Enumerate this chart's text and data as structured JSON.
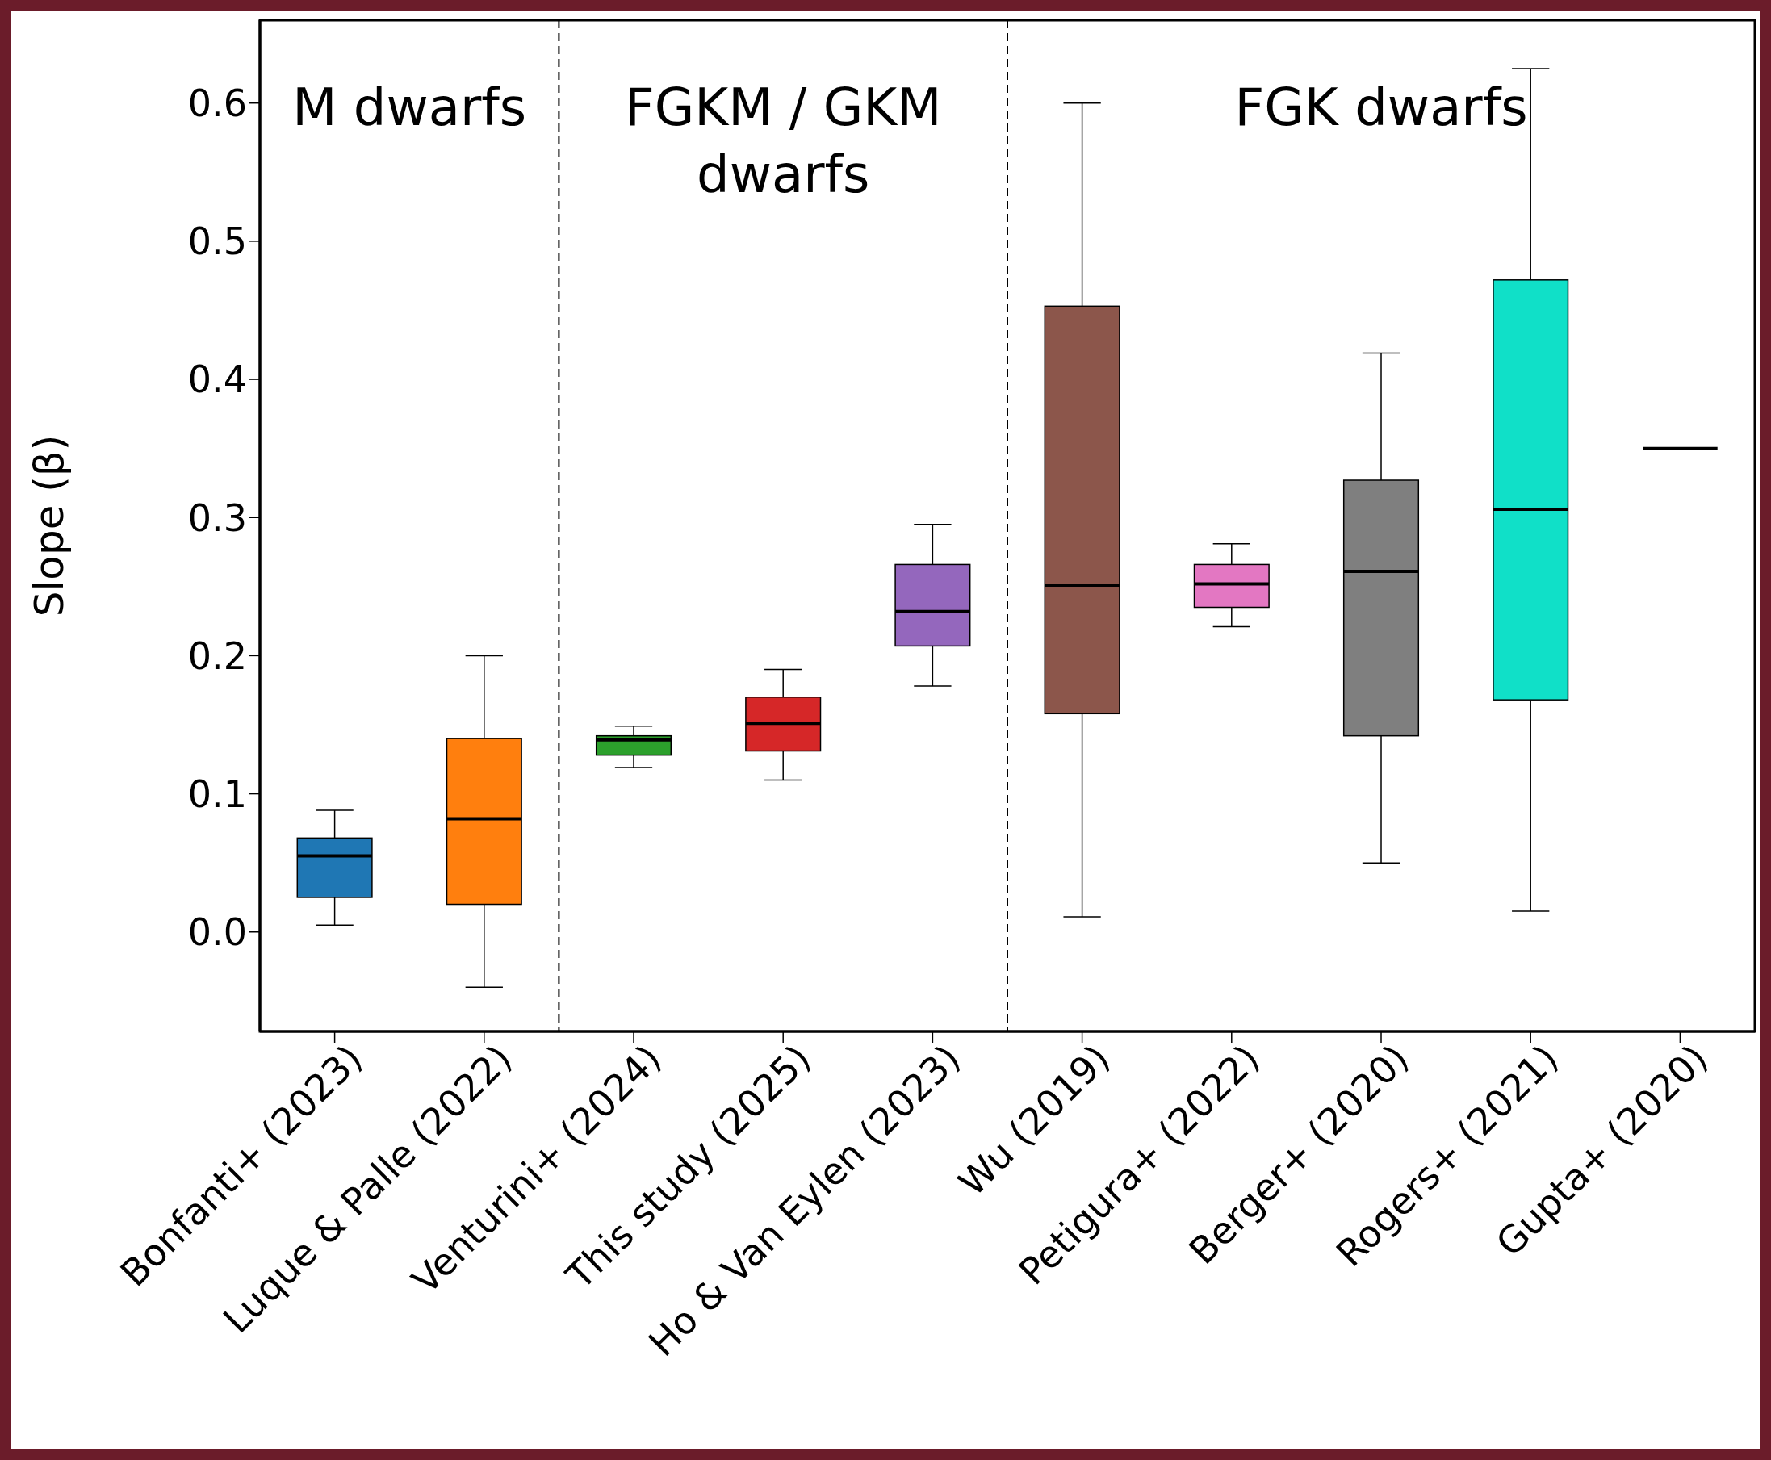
{
  "chart_data": {
    "type": "box",
    "ylabel": "Slope (β)",
    "categories": [
      "Bonfanti+ (2023)",
      "Luque & Palle (2022)",
      "Venturini+ (2024)",
      "This study (2025)",
      "Ho & Van Eylen (2023)",
      "Wu (2019)",
      "Petigura+ (2022)",
      "Berger+ (2020)",
      "Rogers+ (2021)",
      "Gupta+ (2020)"
    ],
    "boxes": [
      {
        "low": 0.005,
        "q1": 0.025,
        "median": 0.055,
        "q3": 0.068,
        "high": 0.088
      },
      {
        "low": -0.04,
        "q1": 0.02,
        "median": 0.082,
        "q3": 0.14,
        "high": 0.2
      },
      {
        "low": 0.119,
        "q1": 0.128,
        "median": 0.139,
        "q3": 0.142,
        "high": 0.149
      },
      {
        "low": 0.11,
        "q1": 0.131,
        "median": 0.151,
        "q3": 0.17,
        "high": 0.19
      },
      {
        "low": 0.178,
        "q1": 0.207,
        "median": 0.232,
        "q3": 0.266,
        "high": 0.295
      },
      {
        "low": 0.011,
        "q1": 0.158,
        "median": 0.251,
        "q3": 0.453,
        "high": 0.6
      },
      {
        "low": 0.221,
        "q1": 0.235,
        "median": 0.252,
        "q3": 0.266,
        "high": 0.281
      },
      {
        "low": 0.05,
        "q1": 0.142,
        "median": 0.261,
        "q3": 0.327,
        "high": 0.419
      },
      {
        "low": 0.015,
        "q1": 0.168,
        "median": 0.306,
        "q3": 0.472,
        "high": 0.625
      },
      {
        "low": 0.35,
        "q1": 0.35,
        "median": 0.35,
        "q3": 0.35,
        "high": 0.35
      }
    ],
    "colors": [
      "#1f77b4",
      "#ff7f0e",
      "#2ca02c",
      "#d62728",
      "#9467bd",
      "#8c564b",
      "#e377c2",
      "#7f7f7f",
      "#10e0c8",
      "#000000"
    ],
    "ylim": [
      -0.072,
      0.66
    ],
    "yticks": [
      {
        "value": 0,
        "label": "0.0"
      },
      {
        "value": 0.1,
        "label": "0.1"
      },
      {
        "value": 0.2,
        "label": "0.2"
      },
      {
        "value": 0.3,
        "label": "0.3"
      },
      {
        "value": 0.4,
        "label": "0.4"
      },
      {
        "value": 0.5,
        "label": "0.5"
      },
      {
        "value": 0.6,
        "label": "0.6"
      }
    ],
    "annotations": [
      "M dwarfs",
      "FGKM / GKM dwarfs",
      "FGK dwarfs"
    ]
  }
}
